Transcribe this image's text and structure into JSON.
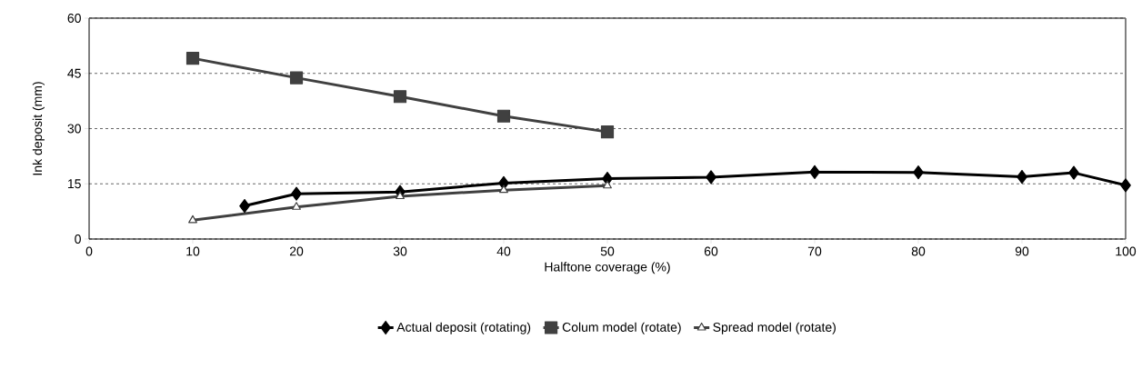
{
  "chart_data": {
    "type": "line",
    "xlabel": "Halftone coverage (%)",
    "ylabel": "Ink deposit (mm)",
    "xlim": [
      0,
      100
    ],
    "xticks": [
      0,
      10,
      20,
      30,
      40,
      50,
      60,
      70,
      80,
      90,
      100
    ],
    "ylim": [
      0,
      60
    ],
    "yticks": [
      0,
      15,
      30,
      45,
      60
    ],
    "grid": "y",
    "legend": "bottom",
    "series": [
      {
        "name": "Actual deposit (rotating)",
        "color": "#000000",
        "marker": "diamond",
        "x": [
          15,
          20,
          30,
          40,
          50,
          60,
          70,
          80,
          90,
          95,
          100
        ],
        "values": [
          9.0,
          12.3,
          12.8,
          15.2,
          16.4,
          16.8,
          18.2,
          18.1,
          16.9,
          18.0,
          14.6
        ]
      },
      {
        "name": "Colum model (rotate)",
        "color": "#404040",
        "marker": "square",
        "x": [
          10,
          20,
          30,
          40,
          50
        ],
        "values": [
          49.1,
          43.8,
          38.7,
          33.4,
          29.1
        ]
      },
      {
        "name": "Spread model (rotate)",
        "color": "#404040",
        "marker": "triangle",
        "x": [
          10,
          20,
          30,
          40,
          50
        ],
        "values": [
          5.1,
          8.7,
          11.6,
          13.3,
          14.5
        ]
      }
    ]
  }
}
